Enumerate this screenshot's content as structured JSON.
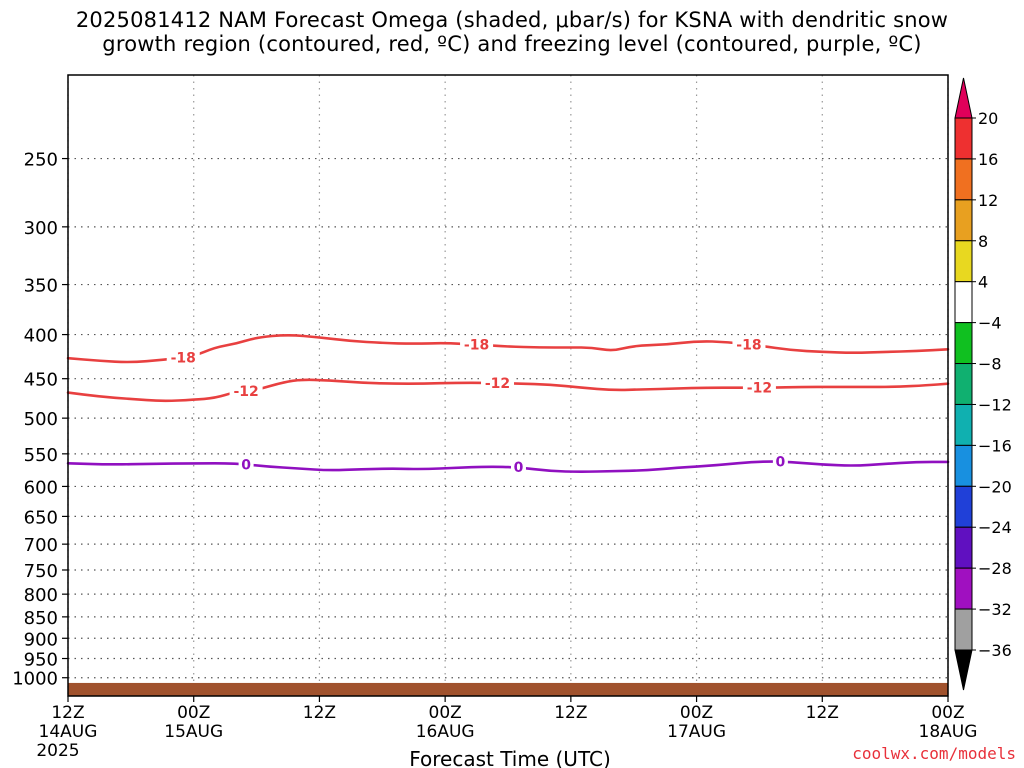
{
  "chart_data": {
    "type": "contour",
    "title_line1": "2025081412 NAM Forecast Omega (shaded, μbar/s) for KSNA with dendritic snow",
    "title_line2": "growth region (contoured, red, ºC) and freezing level (contoured, purple, ºC)",
    "xlabel": "Forecast Time (UTC)",
    "credit": "coolwx.com/models",
    "x_ticks": [
      {
        "hour": 0,
        "l1": "12Z",
        "l2": "14AUG",
        "l3": "2025"
      },
      {
        "hour": 12,
        "l1": "00Z",
        "l2": "15AUG",
        "l3": ""
      },
      {
        "hour": 24,
        "l1": "12Z",
        "l2": "",
        "l3": ""
      },
      {
        "hour": 36,
        "l1": "00Z",
        "l2": "16AUG",
        "l3": ""
      },
      {
        "hour": 48,
        "l1": "12Z",
        "l2": "",
        "l3": ""
      },
      {
        "hour": 60,
        "l1": "00Z",
        "l2": "17AUG",
        "l3": ""
      },
      {
        "hour": 72,
        "l1": "12Z",
        "l2": "",
        "l3": ""
      },
      {
        "hour": 84,
        "l1": "00Z",
        "l2": "18AUG",
        "l3": ""
      }
    ],
    "xlim": [
      0,
      84
    ],
    "y_scale": "log",
    "ylim": [
      1050,
      200
    ],
    "y_ticks": [
      250,
      300,
      350,
      400,
      450,
      500,
      550,
      600,
      650,
      700,
      750,
      800,
      850,
      900,
      950,
      1000
    ],
    "grid": true,
    "ground_pressure": 1014,
    "colorbar": {
      "ticks": [
        "20",
        "16",
        "12",
        "8",
        "4",
        "−4",
        "−8",
        "−12",
        "−16",
        "−20",
        "−24",
        "−28",
        "−32",
        "−36"
      ],
      "colors": [
        "#e0005a",
        "#ee3030",
        "#f07020",
        "#e8a020",
        "#e8d820",
        "#ffffff",
        "#10c020",
        "#10b070",
        "#10b0b0",
        "#1890e0",
        "#2040d8",
        "#6010c0",
        "#a010c0",
        "#a0a0a0",
        "#000000"
      ]
    },
    "series": [
      {
        "label": "-18",
        "color": "#e84040",
        "label_hours": [
          11,
          39,
          65
        ],
        "points": [
          [
            0,
            426
          ],
          [
            3,
            429
          ],
          [
            6,
            431
          ],
          [
            9,
            428
          ],
          [
            12,
            424
          ],
          [
            14,
            414
          ],
          [
            16,
            410
          ],
          [
            18,
            403
          ],
          [
            21,
            400
          ],
          [
            24,
            403
          ],
          [
            27,
            407
          ],
          [
            30,
            409
          ],
          [
            33,
            410
          ],
          [
            36,
            409
          ],
          [
            39,
            411
          ],
          [
            42,
            413
          ],
          [
            45,
            414
          ],
          [
            48,
            414
          ],
          [
            50,
            414
          ],
          [
            52,
            418
          ],
          [
            54,
            412
          ],
          [
            57,
            411
          ],
          [
            60,
            407
          ],
          [
            63,
            408
          ],
          [
            66,
            412
          ],
          [
            69,
            417
          ],
          [
            72,
            419
          ],
          [
            75,
            420
          ],
          [
            78,
            419
          ],
          [
            81,
            418
          ],
          [
            84,
            416
          ]
        ]
      },
      {
        "label": "-12",
        "color": "#e84040",
        "label_hours": [
          17,
          41,
          66
        ],
        "points": [
          [
            0,
            467
          ],
          [
            3,
            472
          ],
          [
            6,
            475
          ],
          [
            9,
            478
          ],
          [
            12,
            476
          ],
          [
            14,
            474
          ],
          [
            16,
            466
          ],
          [
            18,
            464
          ],
          [
            20,
            456
          ],
          [
            22,
            451
          ],
          [
            25,
            452
          ],
          [
            28,
            455
          ],
          [
            31,
            456
          ],
          [
            34,
            456
          ],
          [
            37,
            455
          ],
          [
            40,
            455
          ],
          [
            43,
            456
          ],
          [
            46,
            457
          ],
          [
            49,
            461
          ],
          [
            52,
            464
          ],
          [
            55,
            463
          ],
          [
            58,
            462
          ],
          [
            61,
            461
          ],
          [
            64,
            461
          ],
          [
            67,
            461
          ],
          [
            70,
            460
          ],
          [
            73,
            460
          ],
          [
            76,
            460
          ],
          [
            79,
            460
          ],
          [
            82,
            458
          ],
          [
            84,
            456
          ]
        ]
      },
      {
        "label": "0",
        "color": "#9010c0",
        "label_hours": [
          17,
          43,
          68
        ],
        "points": [
          [
            0,
            564
          ],
          [
            4,
            566
          ],
          [
            8,
            565
          ],
          [
            12,
            564
          ],
          [
            16,
            564
          ],
          [
            19,
            569
          ],
          [
            22,
            572
          ],
          [
            25,
            575
          ],
          [
            28,
            573
          ],
          [
            31,
            572
          ],
          [
            34,
            573
          ],
          [
            37,
            571
          ],
          [
            40,
            569
          ],
          [
            43,
            570
          ],
          [
            46,
            576
          ],
          [
            49,
            577
          ],
          [
            52,
            576
          ],
          [
            55,
            575
          ],
          [
            58,
            571
          ],
          [
            62,
            567
          ],
          [
            66,
            561
          ],
          [
            69,
            562
          ],
          [
            72,
            566
          ],
          [
            75,
            568
          ],
          [
            78,
            565
          ],
          [
            81,
            562
          ],
          [
            84,
            562
          ]
        ]
      }
    ]
  }
}
